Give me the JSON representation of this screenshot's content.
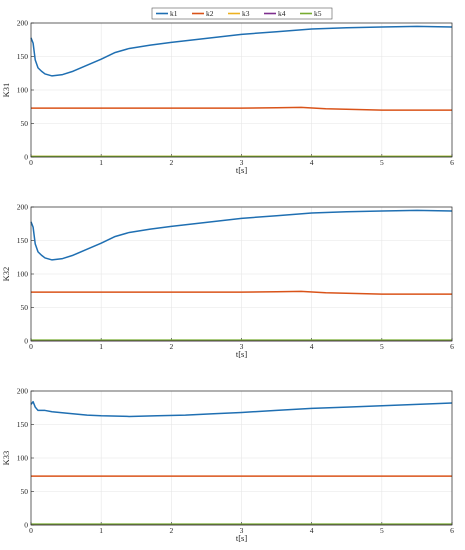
{
  "colors": {
    "k1": "#1f6fb2",
    "k2": "#d95319",
    "k3": "#edb120",
    "k4": "#7e2f8e",
    "k5": "#77ac30",
    "grid": "#e6e6e6",
    "axis": "#262626"
  },
  "legend": {
    "placement": "top-center",
    "entries": [
      "k1",
      "k2",
      "k3",
      "k4",
      "k5"
    ]
  },
  "chart_data": [
    {
      "type": "line",
      "title": "",
      "xlabel": "t[s]",
      "ylabel": "K31",
      "xlim": [
        0,
        6
      ],
      "ylim": [
        0,
        200
      ],
      "xticks": [
        "0",
        "1",
        "2",
        "3",
        "4",
        "5",
        "6"
      ],
      "yticks": [
        "0",
        "50",
        "100",
        "150",
        "200"
      ],
      "grid": true,
      "series": [
        {
          "name": "k1",
          "x": [
            0,
            0.03,
            0.06,
            0.1,
            0.15,
            0.2,
            0.3,
            0.45,
            0.6,
            0.8,
            1.0,
            1.2,
            1.4,
            1.7,
            2.0,
            2.5,
            3.0,
            3.5,
            4.0,
            4.5,
            5.0,
            5.5,
            6.0
          ],
          "y": [
            178,
            170,
            145,
            133,
            128,
            124,
            121,
            123,
            128,
            137,
            146,
            156,
            162,
            167,
            171,
            177,
            183,
            187,
            191,
            193,
            194,
            195,
            194
          ]
        },
        {
          "name": "k2",
          "x": [
            0,
            1,
            2,
            3,
            3.5,
            3.85,
            4.2,
            5.0,
            6.0
          ],
          "y": [
            73,
            73,
            73,
            73,
            73.5,
            74,
            72,
            70,
            70
          ]
        },
        {
          "name": "k3",
          "x": [
            0,
            6
          ],
          "y": [
            1,
            1
          ]
        },
        {
          "name": "k4",
          "x": [
            0,
            6
          ],
          "y": [
            0.5,
            0.5
          ]
        },
        {
          "name": "k5",
          "x": [
            0,
            6
          ],
          "y": [
            0.8,
            0.8
          ]
        }
      ]
    },
    {
      "type": "line",
      "title": "",
      "xlabel": "t[s]",
      "ylabel": "K32",
      "xlim": [
        0,
        6
      ],
      "ylim": [
        0,
        200
      ],
      "xticks": [
        "0",
        "1",
        "2",
        "3",
        "4",
        "5",
        "6"
      ],
      "yticks": [
        "0",
        "50",
        "100",
        "150",
        "200"
      ],
      "grid": true,
      "series": [
        {
          "name": "k1",
          "x": [
            0,
            0.03,
            0.06,
            0.1,
            0.15,
            0.2,
            0.3,
            0.45,
            0.6,
            0.8,
            1.0,
            1.2,
            1.4,
            1.7,
            2.0,
            2.5,
            3.0,
            3.5,
            4.0,
            4.5,
            5.0,
            5.5,
            6.0
          ],
          "y": [
            178,
            170,
            145,
            133,
            128,
            124,
            121,
            123,
            128,
            137,
            146,
            156,
            162,
            167,
            171,
            177,
            183,
            187,
            191,
            193,
            194,
            195,
            194
          ]
        },
        {
          "name": "k2",
          "x": [
            0,
            1,
            2,
            3,
            3.5,
            3.85,
            4.2,
            5.0,
            6.0
          ],
          "y": [
            73,
            73,
            73,
            73,
            73.5,
            74,
            72,
            70,
            70
          ]
        },
        {
          "name": "k3",
          "x": [
            0,
            6
          ],
          "y": [
            1,
            1
          ]
        },
        {
          "name": "k4",
          "x": [
            0,
            6
          ],
          "y": [
            0.5,
            0.5
          ]
        },
        {
          "name": "k5",
          "x": [
            0,
            6
          ],
          "y": [
            1.5,
            1.5
          ]
        }
      ]
    },
    {
      "type": "line",
      "title": "",
      "xlabel": "t[s]",
      "ylabel": "K33",
      "xlim": [
        0,
        6
      ],
      "ylim": [
        0,
        200
      ],
      "xticks": [
        "0",
        "1",
        "2",
        "3",
        "4",
        "5",
        "6"
      ],
      "yticks": [
        "0",
        "50",
        "100",
        "150",
        "200"
      ],
      "grid": true,
      "series": [
        {
          "name": "k1",
          "x": [
            0,
            0.03,
            0.06,
            0.1,
            0.15,
            0.2,
            0.3,
            0.5,
            0.8,
            1.0,
            1.4,
            1.8,
            2.2,
            2.6,
            3.0,
            3.5,
            4.0,
            4.5,
            5.0,
            5.5,
            6.0
          ],
          "y": [
            180,
            184,
            176,
            171,
            171,
            171,
            169,
            167,
            164,
            163,
            162,
            163,
            164,
            166,
            168,
            171,
            174,
            176,
            178,
            180,
            182
          ]
        },
        {
          "name": "k2",
          "x": [
            0,
            6
          ],
          "y": [
            73,
            73
          ]
        },
        {
          "name": "k3",
          "x": [
            0,
            6
          ],
          "y": [
            1,
            1
          ]
        },
        {
          "name": "k4",
          "x": [
            0,
            6
          ],
          "y": [
            0.5,
            0.5
          ]
        },
        {
          "name": "k5",
          "x": [
            0,
            6
          ],
          "y": [
            1.5,
            1.5
          ]
        }
      ]
    }
  ]
}
